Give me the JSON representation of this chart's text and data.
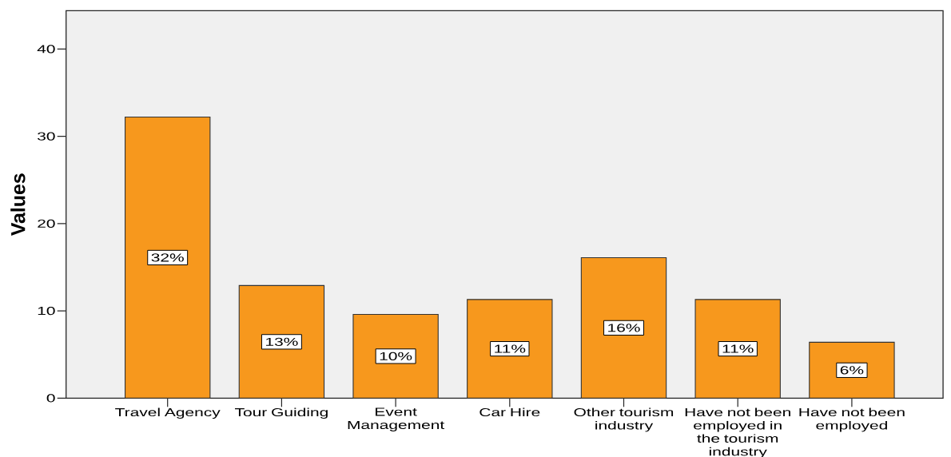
{
  "chart_data": {
    "type": "bar",
    "ylabel": "Values",
    "categories": [
      "Travel Agency",
      "Tour Guiding",
      "Event Management",
      "Car Hire",
      "Other tourism industry",
      "Have not been employed in the tourism industry",
      "Have not been employed"
    ],
    "values": [
      32.2,
      12.9,
      9.6,
      11.3,
      16.1,
      11.3,
      6.4
    ],
    "value_labels": [
      "32%",
      "13%",
      "10%",
      "11%",
      "16%",
      "11%",
      "6%"
    ],
    "color": "#f7981d",
    "ylim": [
      0,
      44.4
    ],
    "yticks": [
      0,
      10,
      20,
      30,
      40
    ]
  }
}
